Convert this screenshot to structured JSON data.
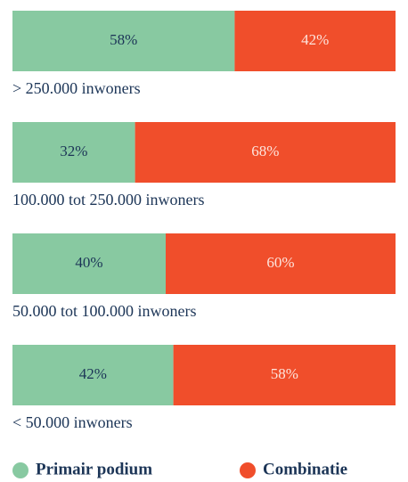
{
  "chart_data": {
    "type": "stacked-barh",
    "categories": [
      "> 250.000 inwoners",
      "100.000 tot 250.000 inwoners",
      "50.000 tot 100.000 inwoners",
      "< 50.000 inwoners"
    ],
    "xlim": [
      0,
      100
    ],
    "series": [
      {
        "name": "Primair podium",
        "color": "#88c9a1",
        "label_color": "#1c3557",
        "values": [
          58,
          32,
          40,
          42
        ],
        "value_labels": [
          "58%",
          "32%",
          "40%",
          "42%"
        ]
      },
      {
        "name": "Combinatie",
        "color": "#f04e2b",
        "label_color": "#fde4dc",
        "values": [
          42,
          68,
          60,
          58
        ],
        "value_labels": [
          "42%",
          "68%",
          "60%",
          "58%"
        ]
      }
    ]
  }
}
